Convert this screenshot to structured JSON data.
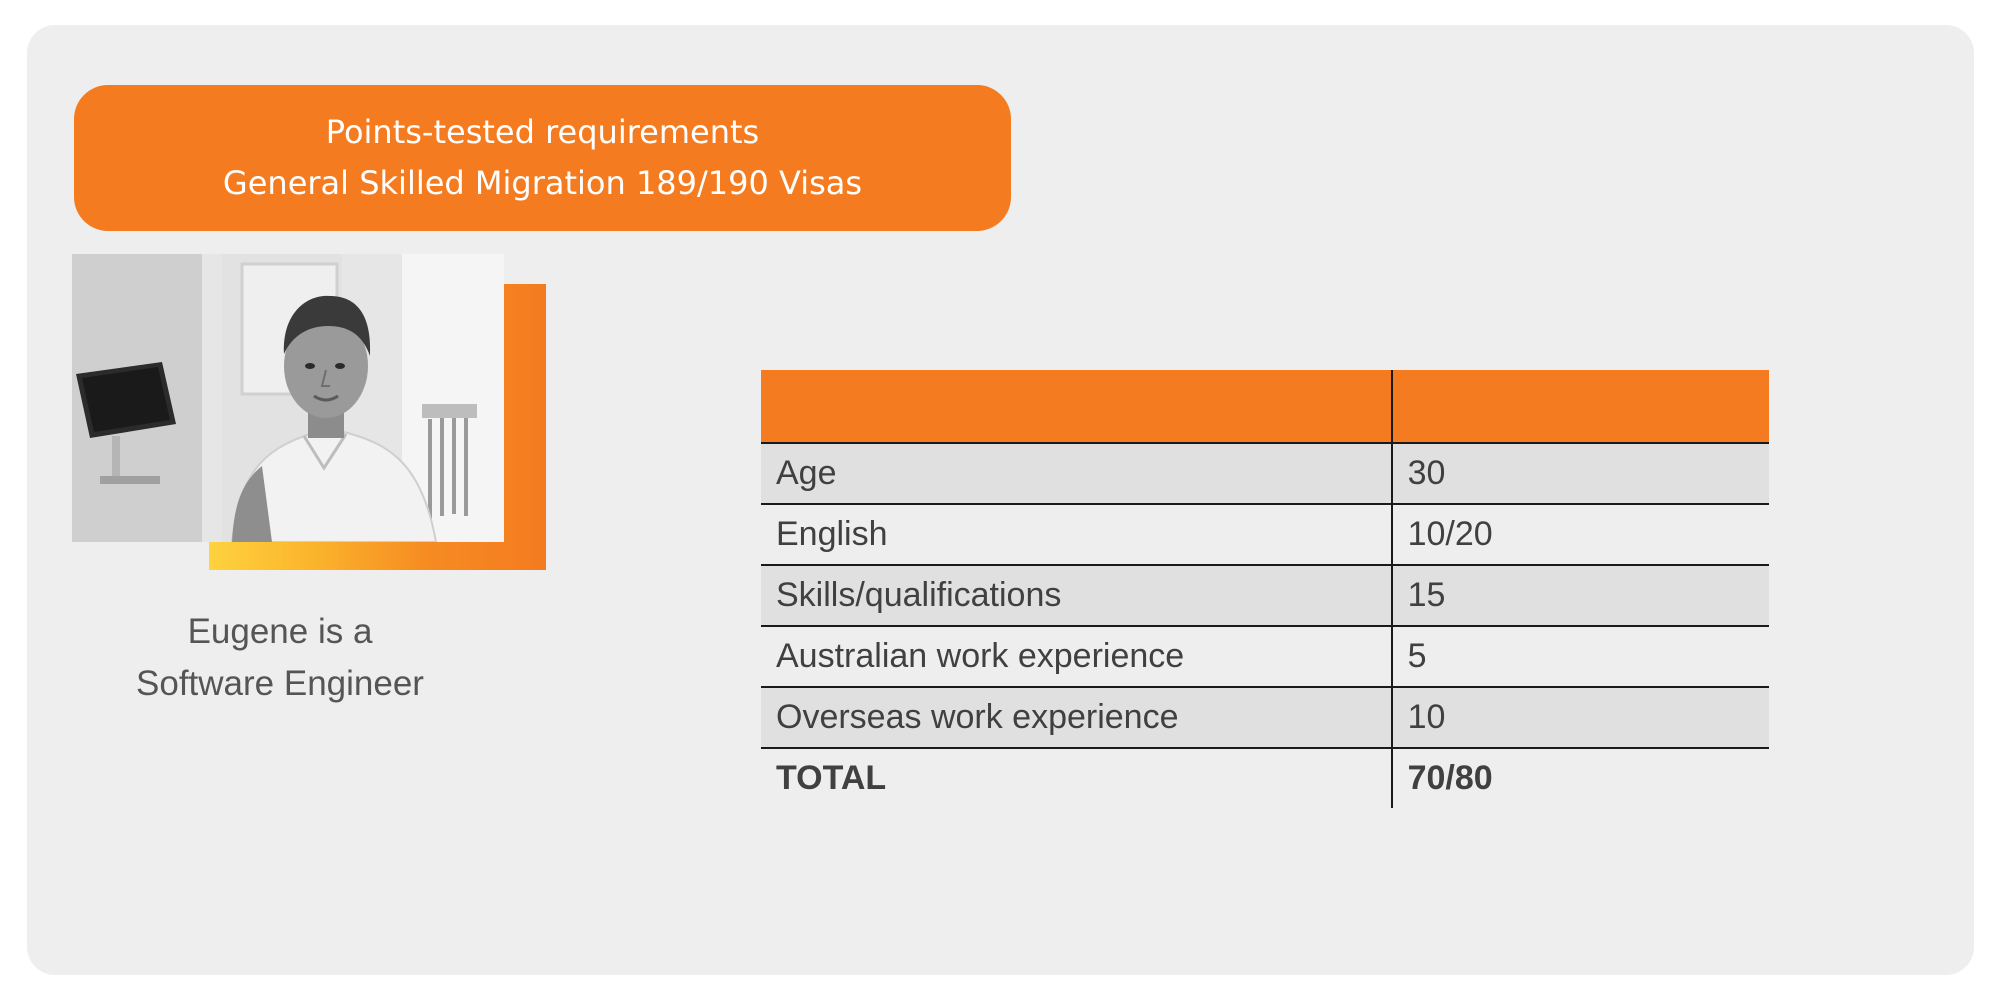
{
  "banner": {
    "line1": "Points-tested requirements",
    "line2": "General Skilled Migration 189/190 Visas"
  },
  "caption": {
    "line1": "Eugene is a",
    "line2": "Software Engineer"
  },
  "colors": {
    "accent": "#f47b20",
    "background": "#eeeeee",
    "row_shade": "#e0e0e0",
    "gradient_start": "#ffd23f"
  },
  "table": {
    "header": [
      "",
      ""
    ],
    "rows": [
      {
        "label": "Age",
        "value": "30"
      },
      {
        "label": "English",
        "value": "10/20"
      },
      {
        "label": "Skills/qualifications",
        "value": "15"
      },
      {
        "label": "Australian work experience",
        "value": "5"
      },
      {
        "label": "Overseas work experience",
        "value": "10"
      }
    ],
    "total": {
      "label": "TOTAL",
      "value": "70/80"
    }
  }
}
